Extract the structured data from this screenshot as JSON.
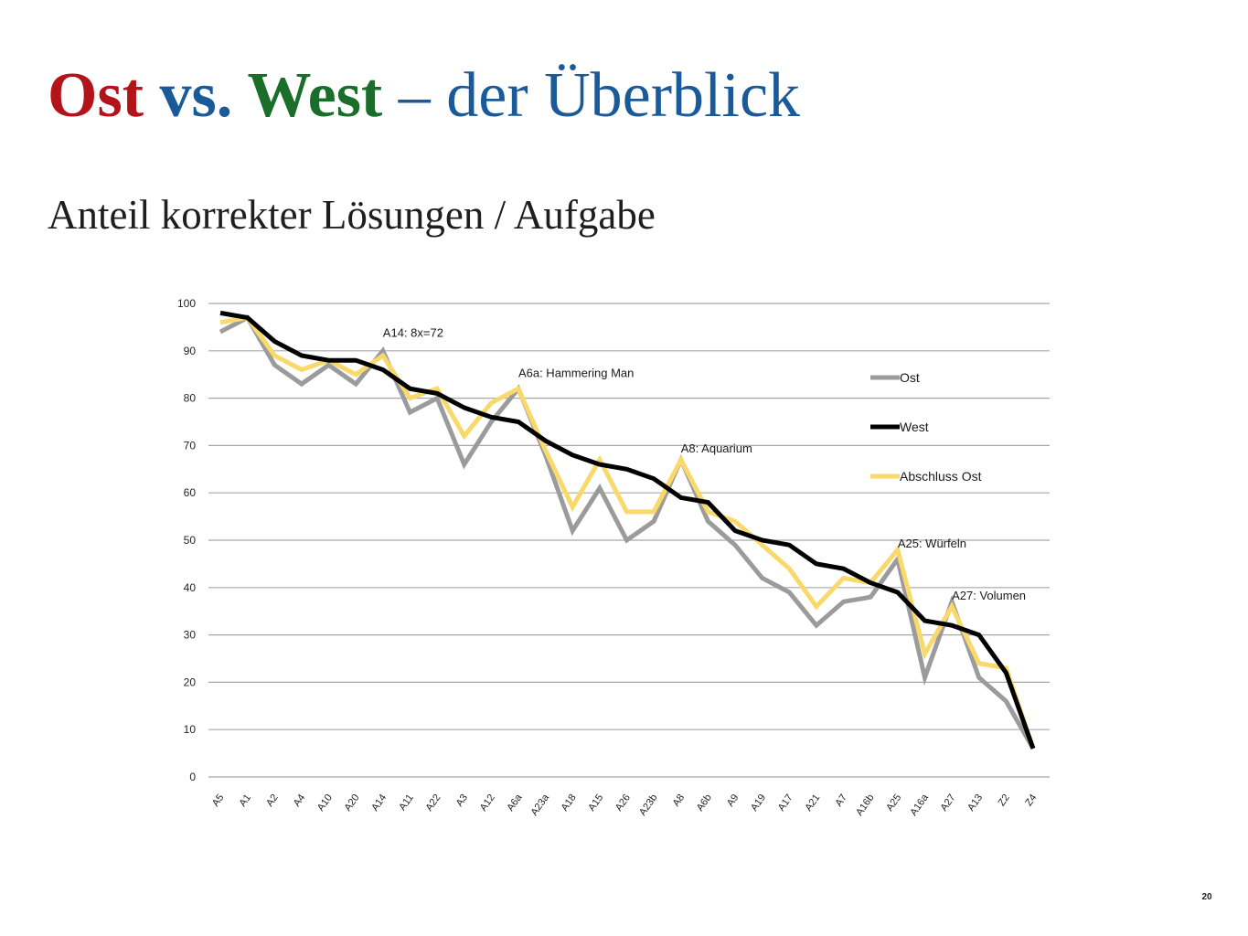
{
  "slide": {
    "title_parts": [
      {
        "text": "Ost",
        "color": "#b3141b",
        "bold": true
      },
      {
        "text": " vs. ",
        "color": "#1b5a99",
        "bold": true
      },
      {
        "text": "West",
        "color": "#1a6e2a",
        "bold": true
      },
      {
        "text": " – der Überblick",
        "color": "#1b5a99",
        "bold": false
      }
    ],
    "subtitle": "Anteil korrekter Lösungen / Aufgabe",
    "page_number": "20"
  },
  "chart_data": {
    "type": "line",
    "title": "",
    "xlabel": "",
    "ylabel": "",
    "ylim": [
      0,
      100
    ],
    "yticks": [
      0,
      10,
      20,
      30,
      40,
      50,
      60,
      70,
      80,
      90,
      100
    ],
    "grid": true,
    "legend_position": "right",
    "categories": [
      "A5",
      "A1",
      "A2",
      "A4",
      "A10",
      "A20",
      "A14",
      "A11",
      "A22",
      "A3",
      "A12",
      "A6a",
      "A23a",
      "A18",
      "A15",
      "A26",
      "A23b",
      "A8",
      "A6b",
      "A9",
      "A19",
      "A17",
      "A21",
      "A7",
      "A16b",
      "A25",
      "A16a",
      "A27",
      "A13",
      "Z2",
      "Z4"
    ],
    "series": [
      {
        "name": "Ost",
        "color": "#9b9b9b",
        "values": [
          94,
          97,
          87,
          83,
          87,
          83,
          90,
          77,
          80,
          66,
          75,
          82,
          68,
          52,
          61,
          50,
          54,
          67,
          54,
          49,
          42,
          39,
          32,
          37,
          38,
          46,
          21,
          37,
          21,
          16,
          6
        ]
      },
      {
        "name": "West",
        "color": "#000000",
        "values": [
          98,
          97,
          92,
          89,
          88,
          88,
          86,
          82,
          81,
          78,
          76,
          75,
          71,
          68,
          66,
          65,
          63,
          59,
          58,
          52,
          50,
          49,
          45,
          44,
          41,
          39,
          33,
          32,
          30,
          22,
          6
        ]
      },
      {
        "name": "Abschluss Ost",
        "color": "#f8d96a",
        "values": [
          96,
          97,
          89,
          86,
          88,
          85,
          89,
          80,
          82,
          72,
          79,
          82,
          69,
          57,
          67,
          56,
          56,
          67,
          56,
          54,
          49,
          44,
          36,
          42,
          41,
          48,
          26,
          36,
          24,
          23,
          6
        ]
      }
    ],
    "annotations": [
      {
        "text": "A14: 8x=72",
        "category": "A14",
        "value": 93
      },
      {
        "text": "A6a: Hammering Man",
        "category": "A6a",
        "value": 84.5
      },
      {
        "text": "A8: Aquarium",
        "category": "A8",
        "value": 68.5
      },
      {
        "text": "A25: Würfeln",
        "category": "A25",
        "value": 48.5
      },
      {
        "text": "A27: Volumen",
        "category": "A27",
        "value": 37.5
      }
    ]
  }
}
